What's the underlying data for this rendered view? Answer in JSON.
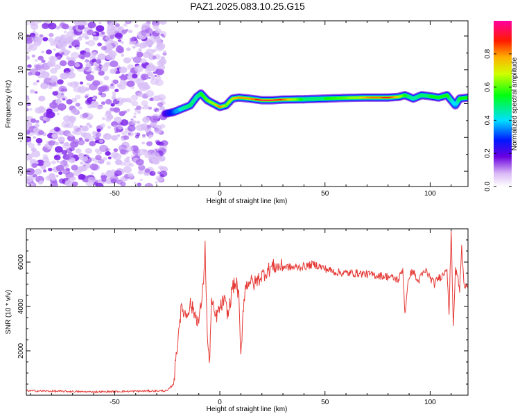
{
  "figure": {
    "title": "PAZ1.2025.083.10.25.G15"
  },
  "chart_data": [
    {
      "type": "heatmap",
      "xlabel": "Height of straight line (km)",
      "ylabel": "Frequency (Hz)",
      "xlim": [
        -92,
        118
      ],
      "ylim": [
        -24.5,
        24.5
      ],
      "xticks": [
        -50,
        0,
        50,
        100
      ],
      "yticks": [
        -20,
        -10,
        0,
        10,
        20
      ],
      "noise_region_x": [
        -92,
        -26
      ],
      "ridge": {
        "x": [
          -26,
          -22,
          -18,
          -14,
          -11,
          -9,
          -6,
          -3,
          0,
          3,
          6,
          9,
          14,
          20,
          25,
          30,
          40,
          50,
          60,
          70,
          80,
          85,
          88,
          92,
          96,
          100,
          104,
          108,
          112,
          114,
          118
        ],
        "freq": [
          -3,
          -2.5,
          -1.5,
          -0.5,
          2,
          3,
          1,
          0,
          -1,
          -0.5,
          1.5,
          1.8,
          1.5,
          1,
          1,
          1.2,
          1.3,
          1.5,
          1.7,
          1.8,
          1.8,
          2,
          2.5,
          1.5,
          2.5,
          2.2,
          1.8,
          2.5,
          -0.5,
          1.5,
          1.8
        ],
        "amplitude": [
          0.2,
          0.3,
          0.45,
          0.5,
          0.45,
          0.55,
          0.6,
          0.7,
          0.85,
          0.6,
          0.75,
          0.8,
          0.8,
          0.95,
          0.95,
          0.85,
          0.5,
          0.55,
          0.6,
          0.8,
          0.9,
          0.7,
          0.55,
          0.45,
          0.5,
          0.55,
          0.55,
          0.55,
          0.35,
          0.55,
          0.55
        ]
      },
      "colorbar": {
        "label": "Normalized spectral amplitude",
        "ticks": [
          "0.0",
          "0.2",
          "0.4",
          "0.6",
          "0.8"
        ],
        "tick_values": [
          0,
          0.2,
          0.4,
          0.6,
          0.8
        ],
        "range": [
          0,
          1
        ]
      }
    },
    {
      "type": "line",
      "xlabel": "Height of straight line (km)",
      "ylabel": "SNR (10 * v/v)",
      "xlim": [
        -92,
        118
      ],
      "ylim": [
        0,
        7500
      ],
      "xticks": [
        -50,
        0,
        50,
        100
      ],
      "yticks": [
        2000,
        4000,
        6000
      ],
      "color": "#e53935",
      "series": [
        {
          "x": [
            -92,
            -60,
            -40,
            -25,
            -22,
            -20,
            -19,
            -18,
            -16,
            -14,
            -12,
            -10,
            -8,
            -7,
            -6,
            -5,
            -4,
            -2,
            0,
            2,
            4,
            6,
            8,
            9,
            10,
            11,
            12,
            14,
            16,
            20,
            25,
            30,
            35,
            40,
            45,
            50,
            55,
            60,
            65,
            70,
            75,
            80,
            85,
            87,
            88,
            90,
            92,
            94,
            96,
            98,
            100,
            102,
            104,
            106,
            108,
            109,
            110,
            111,
            112,
            113,
            114,
            115,
            116,
            117,
            118
          ],
          "y": [
            200,
            150,
            180,
            200,
            500,
            2500,
            3500,
            3900,
            3600,
            4100,
            3700,
            3300,
            4800,
            6700,
            2800,
            1300,
            4200,
            3500,
            3900,
            4300,
            3600,
            4900,
            5000,
            4400,
            1600,
            3800,
            4800,
            5200,
            5000,
            5400,
            5800,
            5800,
            5750,
            5800,
            5900,
            5700,
            5550,
            5500,
            5500,
            5450,
            5400,
            5350,
            5200,
            5700,
            3700,
            5400,
            5600,
            5100,
            5400,
            5600,
            5300,
            5000,
            5300,
            5400,
            5800,
            3700,
            7400,
            3100,
            5600,
            5400,
            4700,
            6700,
            5000,
            5000,
            5000
          ]
        }
      ]
    }
  ]
}
